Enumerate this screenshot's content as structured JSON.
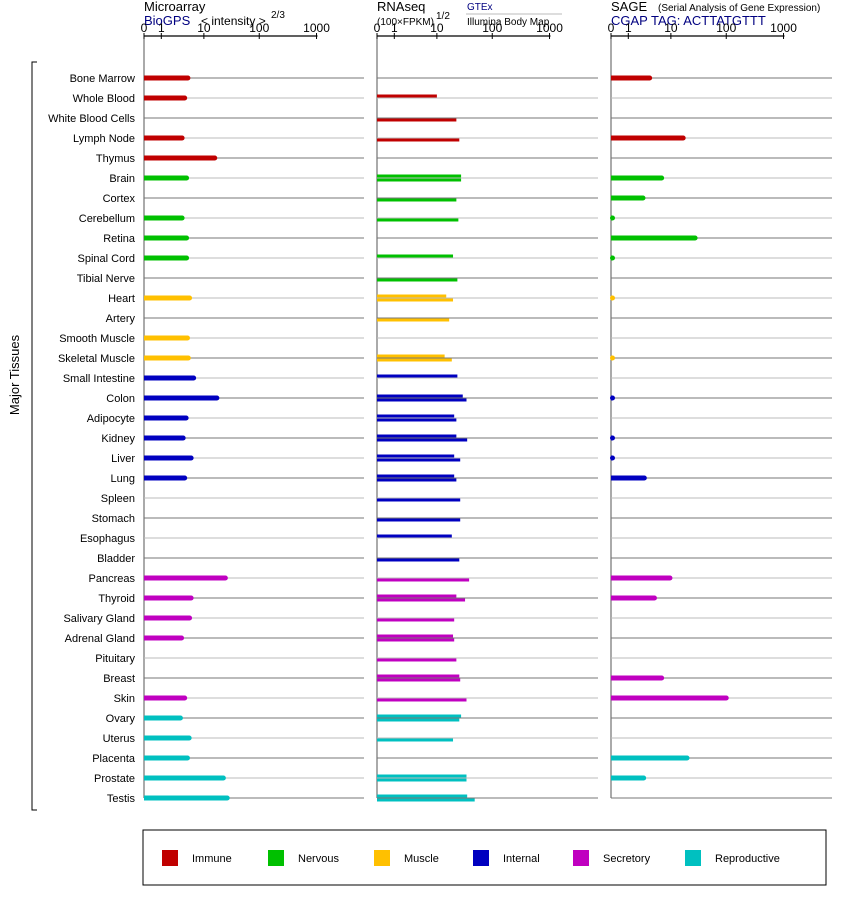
{
  "chart_data": {
    "type": "bar",
    "orientation": "horizontal",
    "y_axis_label": "Major Tissues",
    "x_ticks": [
      "0",
      "1",
      "10",
      "100",
      "1000"
    ],
    "tissues": [
      {
        "name": "Bone Marrow",
        "group": "Immune"
      },
      {
        "name": "Whole Blood",
        "group": "Immune"
      },
      {
        "name": "White Blood Cells",
        "group": "Immune"
      },
      {
        "name": "Lymph Node",
        "group": "Immune"
      },
      {
        "name": "Thymus",
        "group": "Immune"
      },
      {
        "name": "Brain",
        "group": "Nervous"
      },
      {
        "name": "Cortex",
        "group": "Nervous"
      },
      {
        "name": "Cerebellum",
        "group": "Nervous"
      },
      {
        "name": "Retina",
        "group": "Nervous"
      },
      {
        "name": "Spinal Cord",
        "group": "Nervous"
      },
      {
        "name": "Tibial Nerve",
        "group": "Nervous"
      },
      {
        "name": "Heart",
        "group": "Muscle"
      },
      {
        "name": "Artery",
        "group": "Muscle"
      },
      {
        "name": "Smooth Muscle",
        "group": "Muscle"
      },
      {
        "name": "Skeletal Muscle",
        "group": "Muscle"
      },
      {
        "name": "Small Intestine",
        "group": "Internal"
      },
      {
        "name": "Colon",
        "group": "Internal"
      },
      {
        "name": "Adipocyte",
        "group": "Internal"
      },
      {
        "name": "Kidney",
        "group": "Internal"
      },
      {
        "name": "Liver",
        "group": "Internal"
      },
      {
        "name": "Lung",
        "group": "Internal"
      },
      {
        "name": "Spleen",
        "group": "Internal"
      },
      {
        "name": "Stomach",
        "group": "Internal"
      },
      {
        "name": "Esophagus",
        "group": "Internal"
      },
      {
        "name": "Bladder",
        "group": "Internal"
      },
      {
        "name": "Pancreas",
        "group": "Secretory"
      },
      {
        "name": "Thyroid",
        "group": "Secretory"
      },
      {
        "name": "Salivary Gland",
        "group": "Secretory"
      },
      {
        "name": "Adrenal Gland",
        "group": "Secretory"
      },
      {
        "name": "Pituitary",
        "group": "Secretory"
      },
      {
        "name": "Breast",
        "group": "Secretory"
      },
      {
        "name": "Skin",
        "group": "Secretory"
      },
      {
        "name": "Ovary",
        "group": "Reproductive"
      },
      {
        "name": "Uterus",
        "group": "Reproductive"
      },
      {
        "name": "Placenta",
        "group": "Reproductive"
      },
      {
        "name": "Prostate",
        "group": "Reproductive"
      },
      {
        "name": "Testis",
        "group": "Reproductive"
      }
    ],
    "groups": [
      {
        "name": "Immune",
        "color": "#c00000"
      },
      {
        "name": "Nervous",
        "color": "#00c000"
      },
      {
        "name": "Muscle",
        "color": "#ffc000"
      },
      {
        "name": "Internal",
        "color": "#0000c0"
      },
      {
        "name": "Secretory",
        "color": "#c000c0"
      },
      {
        "name": "Reproductive",
        "color": "#00c0c0"
      }
    ],
    "panels": [
      {
        "id": "microarray",
        "title": "Microarray",
        "subtitle": "BioGPS",
        "unit_text": "< intensity >",
        "unit_exponent": "2/3",
        "values": [
          4.8,
          4.1,
          null,
          3.6,
          16,
          4.5,
          null,
          3.6,
          4.5,
          4.5,
          null,
          5.2,
          null,
          4.7,
          4.9,
          6.3,
          17.5,
          4.4,
          3.8,
          5.6,
          4.1,
          null,
          null,
          null,
          null,
          25,
          5.6,
          5.2,
          3.5,
          null,
          null,
          4.1,
          3.3,
          5.1,
          4.7,
          23,
          27
        ]
      },
      {
        "id": "rnaseq",
        "title": "RNAseq",
        "unit_text": "(100×FPKM)",
        "unit_exponent": "1/2",
        "source_gtex": "GTEx",
        "source_ibm": "Illumina Body Map",
        "values": [
          [
            null,
            null
          ],
          [
            10,
            null
          ],
          [
            null,
            23
          ],
          [
            null,
            26
          ],
          [
            null,
            null
          ],
          [
            28,
            28
          ],
          [
            null,
            23
          ],
          [
            null,
            25
          ],
          [
            null,
            null
          ],
          [
            20,
            null
          ],
          [
            null,
            24
          ],
          [
            15,
            20
          ],
          [
            null,
            17
          ],
          [
            null,
            null
          ],
          [
            14,
            19
          ],
          [
            24,
            null
          ],
          [
            30,
            35
          ],
          [
            21,
            23
          ],
          [
            23,
            36
          ],
          [
            21,
            27
          ],
          [
            21,
            23
          ],
          [
            null,
            27
          ],
          [
            null,
            27
          ],
          [
            19,
            null
          ],
          [
            null,
            26
          ],
          [
            null,
            39
          ],
          [
            23,
            33
          ],
          [
            null,
            21
          ],
          [
            20,
            21
          ],
          [
            null,
            23
          ],
          [
            26,
            27
          ],
          [
            null,
            35
          ],
          [
            28,
            26
          ],
          [
            null,
            20
          ],
          [
            null,
            null
          ],
          [
            35,
            35
          ],
          [
            36,
            49
          ]
        ]
      },
      {
        "id": "sage",
        "title": "SAGE",
        "title_note": "(Serial Analysis of Gene Expression)",
        "subtitle": "CGAP TAG: ACTTATGTTT",
        "values": [
          3.7,
          null,
          null,
          17,
          null,
          6.6,
          2.6,
          0.01,
          28,
          0.01,
          null,
          0.003,
          null,
          null,
          0.003,
          null,
          0.02,
          null,
          0.02,
          0.02,
          2.8,
          null,
          null,
          null,
          null,
          9.6,
          4.7,
          null,
          null,
          null,
          6.6,
          100,
          null,
          null,
          20,
          2.7,
          null
        ]
      }
    ]
  }
}
